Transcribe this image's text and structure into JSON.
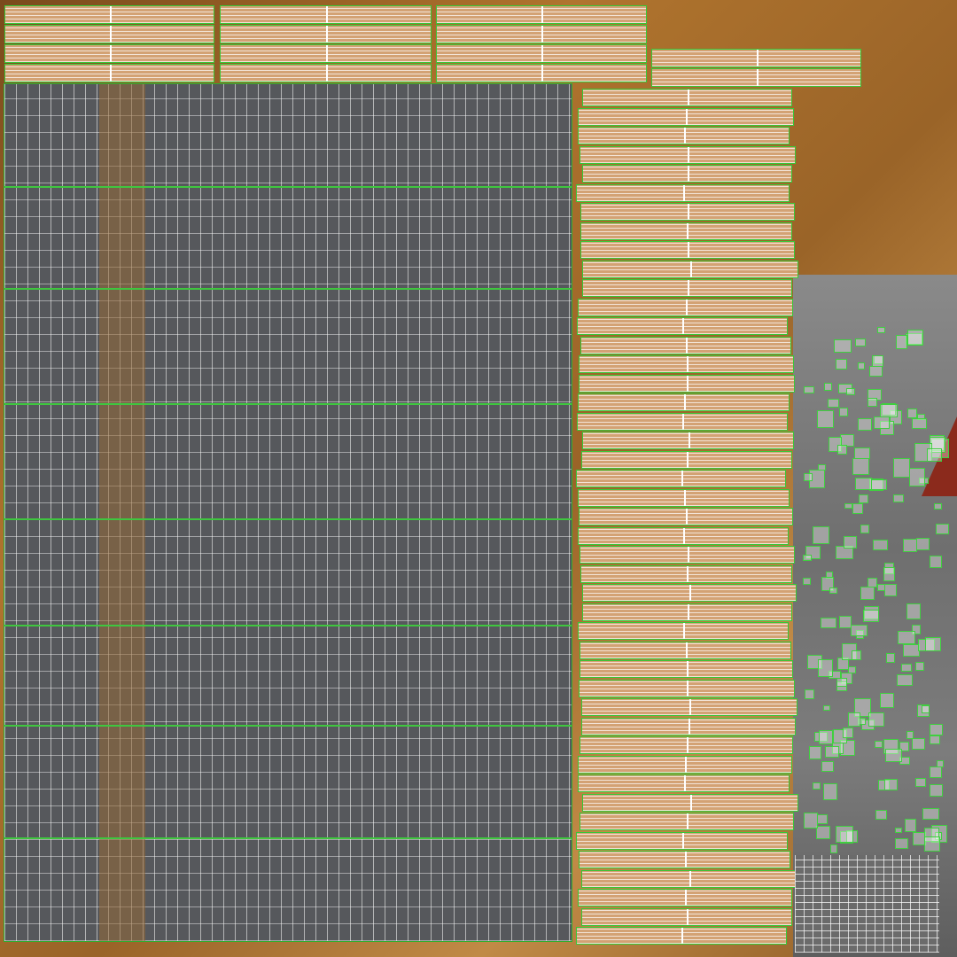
{
  "colors": {
    "background": "#a06a2c",
    "panel_gray": "#56585c",
    "plank_wood": "#d3a274",
    "seam_green": "#37c837",
    "wire_white": "#ffffff",
    "accent_red": "#8b2a1c"
  }
}
